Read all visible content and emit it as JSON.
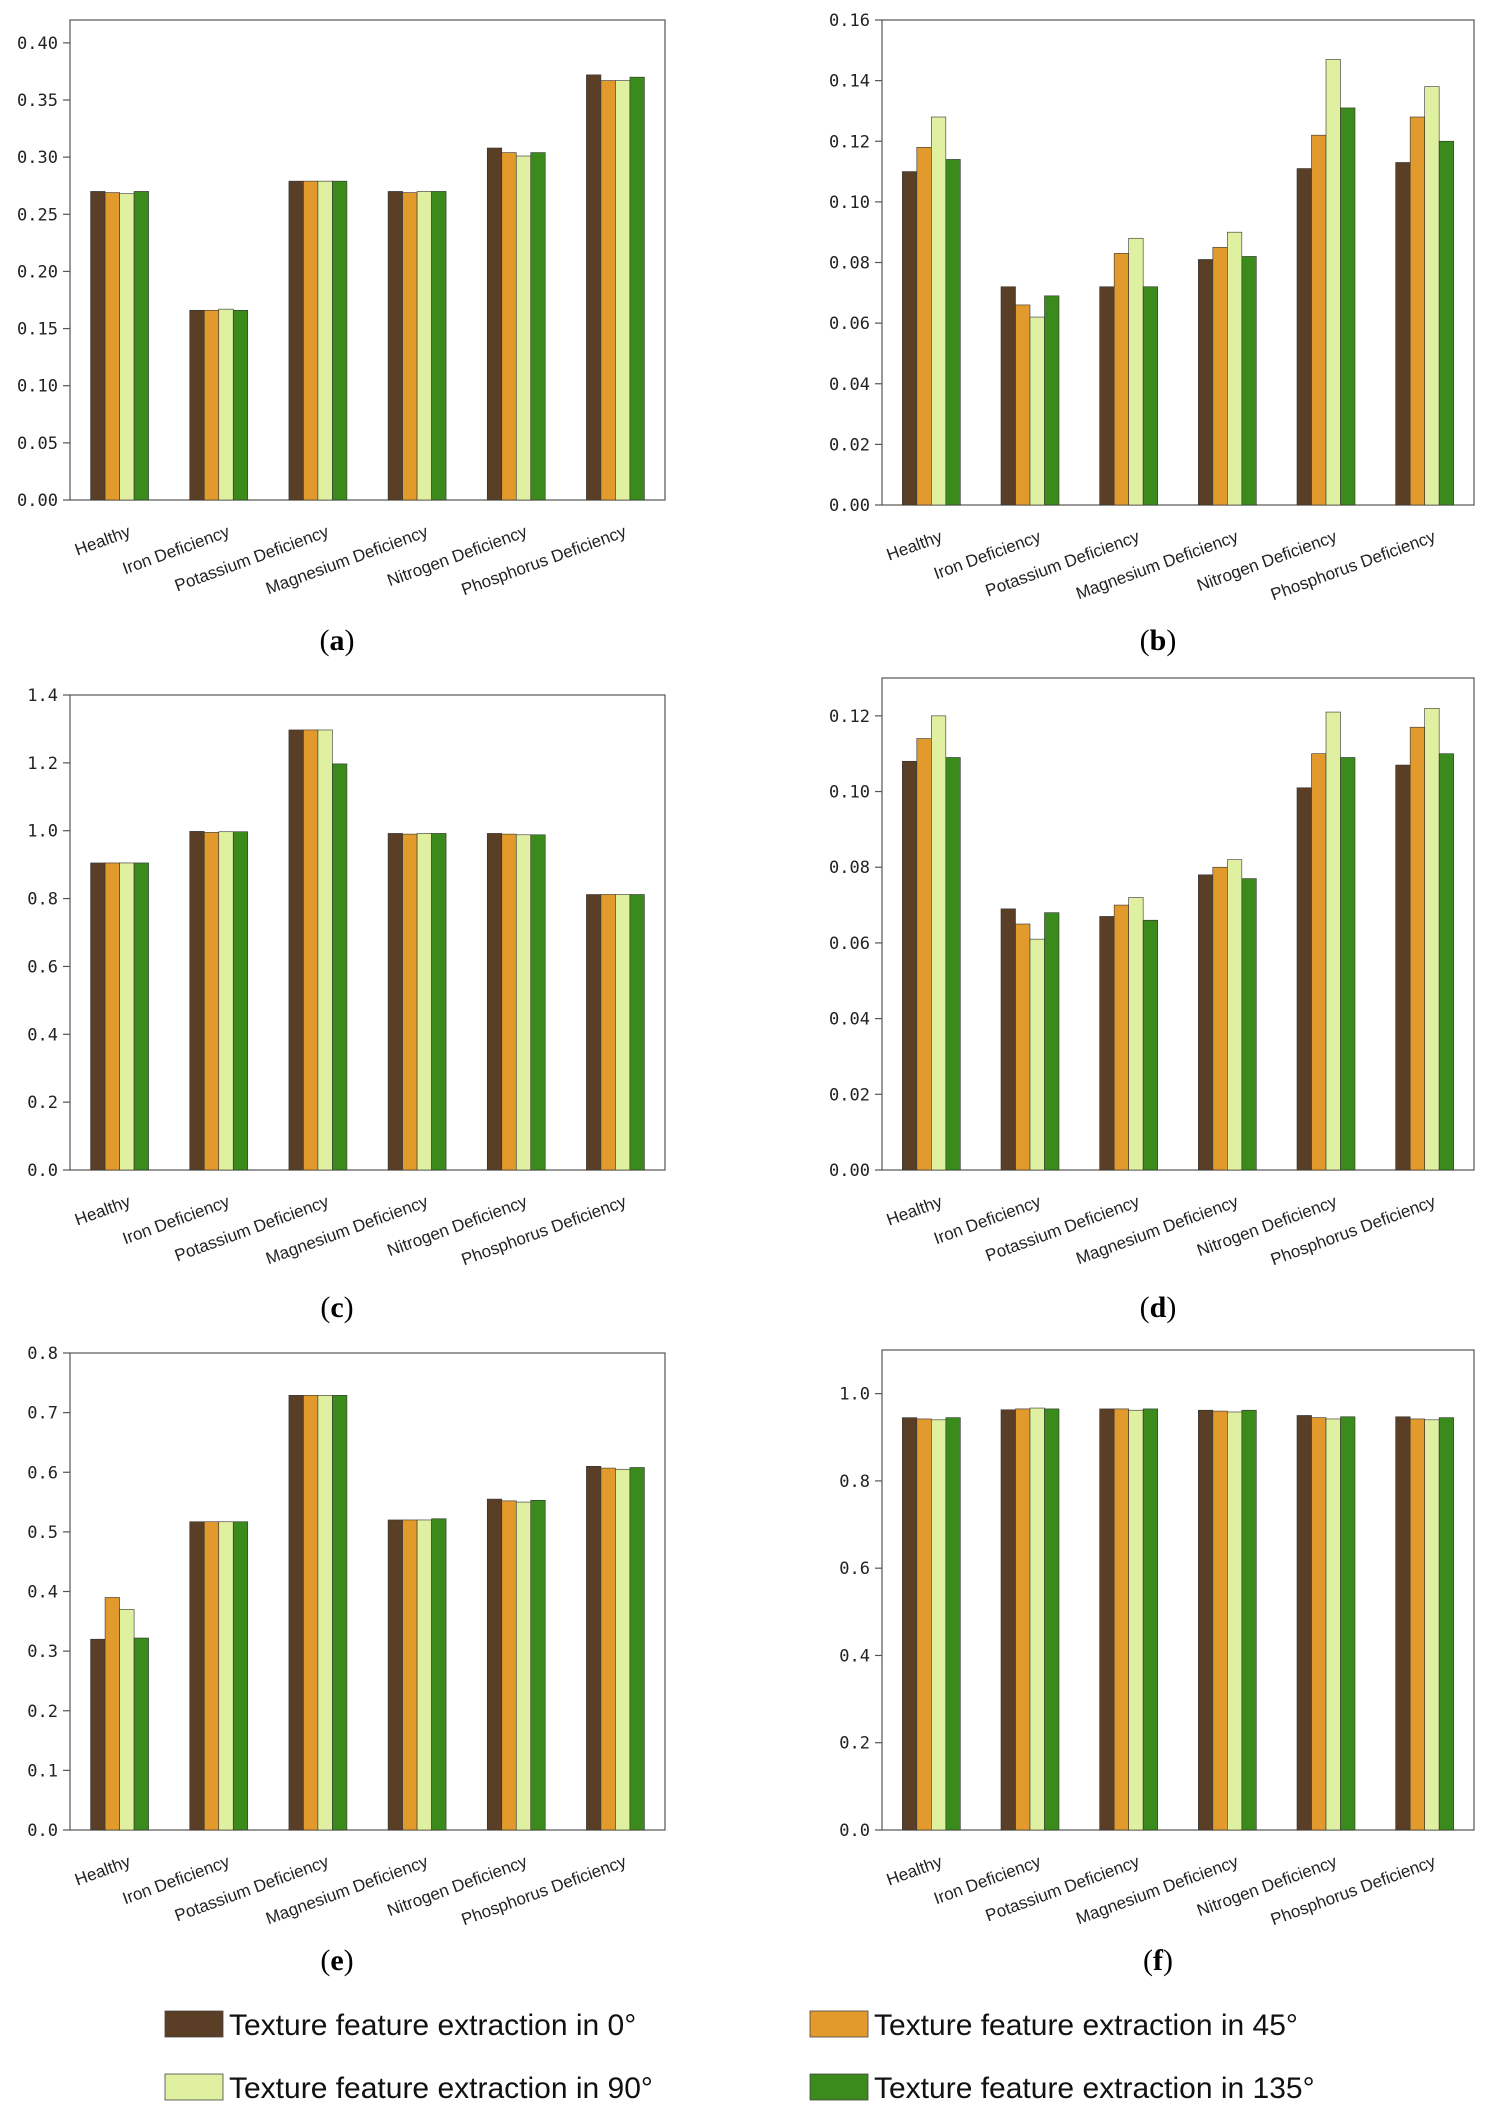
{
  "colors": {
    "deg0": "#5a3f26",
    "deg45": "#e39a2c",
    "deg90": "#dff0a0",
    "deg135": "#3a8a1c"
  },
  "legend": [
    {
      "key": "deg0",
      "label": "Texture feature extraction in 0°"
    },
    {
      "key": "deg45",
      "label": "Texture feature extraction in 45°"
    },
    {
      "key": "deg90",
      "label": "Texture feature extraction in 90°"
    },
    {
      "key": "deg135",
      "label": "Texture feature extraction in 135°"
    }
  ],
  "chart_data": [
    {
      "id": "a",
      "type": "bar",
      "caption": {
        "open": "(",
        "letter": "a",
        "close": ")"
      },
      "categories": [
        "Healthy",
        "Iron Deficiency",
        "Potassium Deficiency",
        "Magnesium Deficiency",
        "Nitrogen Deficiency",
        "Phosphorus Deficiency"
      ],
      "ylim": [
        0,
        0.42
      ],
      "yticks": [
        "0.00",
        "0.05",
        "0.10",
        "0.15",
        "0.20",
        "0.25",
        "0.30",
        "0.35",
        "0.40"
      ],
      "series": [
        {
          "name": "Texture feature extraction in 0°",
          "key": "deg0",
          "values": [
            0.27,
            0.166,
            0.279,
            0.27,
            0.308,
            0.372
          ]
        },
        {
          "name": "Texture feature extraction in 45°",
          "key": "deg45",
          "values": [
            0.269,
            0.166,
            0.279,
            0.269,
            0.304,
            0.367
          ]
        },
        {
          "name": "Texture feature extraction in 90°",
          "key": "deg90",
          "values": [
            0.268,
            0.167,
            0.279,
            0.27,
            0.301,
            0.367
          ]
        },
        {
          "name": "Texture feature extraction in 135°",
          "key": "deg135",
          "values": [
            0.27,
            0.166,
            0.279,
            0.27,
            0.304,
            0.37
          ]
        }
      ]
    },
    {
      "id": "b",
      "type": "bar",
      "caption": {
        "open": "(",
        "letter": "b",
        "close": ")"
      },
      "categories": [
        "Healthy",
        "Iron Deficiency",
        "Potassium Deficiency",
        "Magnesium Deficiency",
        "Nitrogen Deficiency",
        "Phosphorus Deficiency"
      ],
      "ylim": [
        0,
        0.16
      ],
      "yticks": [
        "0.00",
        "0.02",
        "0.04",
        "0.06",
        "0.08",
        "0.10",
        "0.12",
        "0.14",
        "0.16"
      ],
      "series": [
        {
          "name": "Texture feature extraction in 0°",
          "key": "deg0",
          "values": [
            0.11,
            0.072,
            0.072,
            0.081,
            0.111,
            0.113
          ]
        },
        {
          "name": "Texture feature extraction in 45°",
          "key": "deg45",
          "values": [
            0.118,
            0.066,
            0.083,
            0.085,
            0.122,
            0.128
          ]
        },
        {
          "name": "Texture feature extraction in 90°",
          "key": "deg90",
          "values": [
            0.128,
            0.062,
            0.088,
            0.09,
            0.147,
            0.138
          ]
        },
        {
          "name": "Texture feature extraction in 135°",
          "key": "deg135",
          "values": [
            0.114,
            0.069,
            0.072,
            0.082,
            0.131,
            0.12
          ]
        }
      ]
    },
    {
      "id": "c",
      "type": "bar",
      "caption": {
        "open": "(",
        "letter": "c",
        "close": ")"
      },
      "categories": [
        "Healthy",
        "Iron Deficiency",
        "Potassium Deficiency",
        "Magnesium Deficiency",
        "Nitrogen Deficiency",
        "Phosphorus Deficiency"
      ],
      "ylim": [
        0,
        1.4
      ],
      "yticks": [
        "0.0",
        "0.2",
        "0.4",
        "0.6",
        "0.8",
        "1.0",
        "1.2",
        "1.4"
      ],
      "series": [
        {
          "name": "Texture feature extraction in 0°",
          "key": "deg0",
          "values": [
            0.905,
            0.998,
            1.297,
            0.992,
            0.992,
            0.812
          ]
        },
        {
          "name": "Texture feature extraction in 45°",
          "key": "deg45",
          "values": [
            0.905,
            0.995,
            1.297,
            0.99,
            0.99,
            0.812
          ]
        },
        {
          "name": "Texture feature extraction in 90°",
          "key": "deg90",
          "values": [
            0.905,
            0.997,
            1.297,
            0.992,
            0.988,
            0.812
          ]
        },
        {
          "name": "Texture feature extraction in 135°",
          "key": "deg135",
          "values": [
            0.905,
            0.997,
            1.197,
            0.992,
            0.988,
            0.812
          ]
        }
      ]
    },
    {
      "id": "d",
      "type": "bar",
      "caption": {
        "open": "(",
        "letter": "d",
        "close": ")"
      },
      "categories": [
        "Healthy",
        "Iron Deficiency",
        "Potassium Deficiency",
        "Magnesium Deficiency",
        "Nitrogen Deficiency",
        "Phosphorus Deficiency"
      ],
      "ylim": [
        0,
        0.13
      ],
      "yticks": [
        "0.00",
        "0.02",
        "0.04",
        "0.06",
        "0.08",
        "0.10",
        "0.12"
      ],
      "series": [
        {
          "name": "Texture feature extraction in 0°",
          "key": "deg0",
          "values": [
            0.108,
            0.069,
            0.067,
            0.078,
            0.101,
            0.107
          ]
        },
        {
          "name": "Texture feature extraction in 45°",
          "key": "deg45",
          "values": [
            0.114,
            0.065,
            0.07,
            0.08,
            0.11,
            0.117
          ]
        },
        {
          "name": "Texture feature extraction in 90°",
          "key": "deg90",
          "values": [
            0.12,
            0.061,
            0.072,
            0.082,
            0.121,
            0.122
          ]
        },
        {
          "name": "Texture feature extraction in 135°",
          "key": "deg135",
          "values": [
            0.109,
            0.068,
            0.066,
            0.077,
            0.109,
            0.11
          ]
        }
      ]
    },
    {
      "id": "e",
      "type": "bar",
      "caption": {
        "open": "(",
        "letter": "e",
        "close": ")"
      },
      "categories": [
        "Healthy",
        "Iron Deficiency",
        "Potassium Deficiency",
        "Magnesium Deficiency",
        "Nitrogen Deficiency",
        "Phosphorus Deficiency"
      ],
      "ylim": [
        0,
        0.8
      ],
      "yticks": [
        "0.0",
        "0.1",
        "0.2",
        "0.3",
        "0.4",
        "0.5",
        "0.6",
        "0.7",
        "0.8"
      ],
      "series": [
        {
          "name": "Texture feature extraction in 0°",
          "key": "deg0",
          "values": [
            0.32,
            0.517,
            0.729,
            0.52,
            0.555,
            0.61
          ]
        },
        {
          "name": "Texture feature extraction in 45°",
          "key": "deg45",
          "values": [
            0.39,
            0.517,
            0.729,
            0.52,
            0.552,
            0.607
          ]
        },
        {
          "name": "Texture feature extraction in 90°",
          "key": "deg90",
          "values": [
            0.37,
            0.517,
            0.729,
            0.52,
            0.55,
            0.605
          ]
        },
        {
          "name": "Texture feature extraction in 135°",
          "key": "deg135",
          "values": [
            0.322,
            0.517,
            0.729,
            0.522,
            0.553,
            0.608
          ]
        }
      ]
    },
    {
      "id": "f",
      "type": "bar",
      "caption": {
        "open": "(",
        "letter": "f",
        "close": ")"
      },
      "categories": [
        "Healthy",
        "Iron Deficiency",
        "Potassium Deficiency",
        "Magnesium Deficiency",
        "Nitrogen Deficiency",
        "Phosphorus Deficiency"
      ],
      "ylim": [
        0,
        1.1
      ],
      "yticks": [
        "0.0",
        "0.2",
        "0.4",
        "0.6",
        "0.8",
        "1.0"
      ],
      "series": [
        {
          "name": "Texture feature extraction in 0°",
          "key": "deg0",
          "values": [
            0.945,
            0.963,
            0.965,
            0.962,
            0.95,
            0.947
          ]
        },
        {
          "name": "Texture feature extraction in 45°",
          "key": "deg45",
          "values": [
            0.942,
            0.965,
            0.965,
            0.96,
            0.945,
            0.942
          ]
        },
        {
          "name": "Texture feature extraction in 90°",
          "key": "deg90",
          "values": [
            0.94,
            0.967,
            0.962,
            0.958,
            0.942,
            0.94
          ]
        },
        {
          "name": "Texture feature extraction in 135°",
          "key": "deg135",
          "values": [
            0.945,
            0.965,
            0.965,
            0.962,
            0.947,
            0.945
          ]
        }
      ]
    }
  ]
}
